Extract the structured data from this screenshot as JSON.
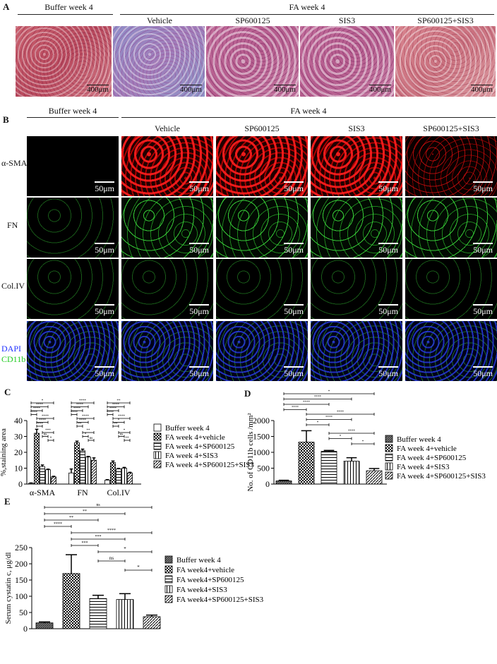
{
  "panelA": {
    "label": "A",
    "buffer_header": "Buffer week 4",
    "fa_header": "FA week 4",
    "columns": [
      "Vehicle",
      "SP600125",
      "SIS3",
      "SP600125+SIS3"
    ],
    "scale_bar": "400μm"
  },
  "panelB": {
    "label": "B",
    "buffer_header": "Buffer week 4",
    "fa_header": "FA week 4",
    "columns": [
      "Vehicle",
      "SP600125",
      "SIS3",
      "SP600125+SIS3"
    ],
    "rows": [
      "α-SMA",
      "FN",
      "Col.IV"
    ],
    "dapi_label": "DAPI",
    "cd11b_label": "CD11b",
    "dapi_color": "#2233ff",
    "cd11b_color": "#22cc22",
    "scale_bar": "50μm"
  },
  "chart_data": [
    {
      "panel": "C",
      "type": "bar",
      "categories": [
        "α-SMA",
        "FN",
        "Col.IV"
      ],
      "ylabel": "%,staining area",
      "ylim": [
        0,
        40
      ],
      "yticks": [
        "0",
        "10",
        "20",
        "30",
        "40"
      ],
      "legend": "right",
      "series": [
        {
          "name": "Buffer week 4",
          "values": [
            0.5,
            7,
            2.5
          ],
          "pattern": "white"
        },
        {
          "name": "FA week 4+vehicle",
          "values": [
            32,
            26,
            13.5
          ],
          "pattern": "checker"
        },
        {
          "name": "FA week 4+SP600125",
          "values": [
            11,
            21,
            9.5
          ],
          "pattern": "hlines"
        },
        {
          "name": "FA week 4+SIS3",
          "values": [
            9,
            17,
            10
          ],
          "pattern": "vlines"
        },
        {
          "name": "FA week 4+SP600125+SIS3",
          "values": [
            4.5,
            15,
            7
          ],
          "pattern": "diag"
        }
      ],
      "errors": [
        [
          0.2,
          2.5,
          0.3
        ],
        [
          2.5,
          1,
          1
        ],
        [
          1,
          1,
          0.4
        ],
        [
          0.4,
          0.4,
          0.5
        ],
        [
          0.4,
          1.5,
          0.4
        ]
      ],
      "significance": [
        [
          [
            0,
            4,
            "*"
          ],
          [
            0,
            3,
            "****"
          ],
          [
            0,
            2,
            "****"
          ],
          [
            0,
            1,
            "****"
          ],
          [
            1,
            4,
            "****"
          ],
          [
            1,
            3,
            "****"
          ],
          [
            1,
            2,
            "****"
          ],
          [
            2,
            4,
            "***"
          ],
          [
            2,
            3,
            "ns"
          ],
          [
            3,
            4,
            "*"
          ]
        ],
        [
          [
            0,
            4,
            "****"
          ],
          [
            0,
            3,
            "****"
          ],
          [
            0,
            2,
            "****"
          ],
          [
            0,
            1,
            "****"
          ],
          [
            1,
            4,
            "****"
          ],
          [
            1,
            3,
            "****"
          ],
          [
            1,
            2,
            "**"
          ],
          [
            2,
            4,
            "**"
          ],
          [
            2,
            3,
            "*"
          ],
          [
            3,
            4,
            "ns"
          ]
        ],
        [
          [
            0,
            4,
            "**"
          ],
          [
            0,
            3,
            "****"
          ],
          [
            0,
            2,
            "****"
          ],
          [
            0,
            1,
            "****"
          ],
          [
            1,
            4,
            "****"
          ],
          [
            1,
            3,
            "*"
          ],
          [
            1,
            2,
            "**"
          ],
          [
            2,
            4,
            "*"
          ],
          [
            2,
            3,
            "ns"
          ],
          [
            3,
            4,
            "**"
          ]
        ]
      ]
    },
    {
      "panel": "D",
      "type": "bar",
      "categories": [
        "Buffer week 4",
        "FA week 4+vehicle",
        "FA week 4+SP600125",
        "FA week 4+SIS3",
        "FA week 4+SP600125+SIS3"
      ],
      "ylabel": "No. of CD11b cells /mm²",
      "ylim": [
        0,
        2000
      ],
      "yticks": [
        "0",
        "500",
        "1000",
        "1500",
        "2000"
      ],
      "legend": "right",
      "values": [
        100,
        1320,
        1030,
        720,
        420
      ],
      "errors": [
        20,
        360,
        30,
        110,
        70
      ],
      "patterns": [
        "dense",
        "checker",
        "hlines",
        "vlines",
        "diag"
      ],
      "significance": [
        [
          0,
          4,
          "*"
        ],
        [
          0,
          3,
          "****"
        ],
        [
          0,
          2,
          "****"
        ],
        [
          0,
          1,
          "****"
        ],
        [
          1,
          4,
          "****"
        ],
        [
          1,
          3,
          "****"
        ],
        [
          1,
          2,
          "*"
        ],
        [
          2,
          4,
          "****"
        ],
        [
          2,
          3,
          "*"
        ],
        [
          3,
          4,
          "*"
        ]
      ]
    },
    {
      "panel": "E",
      "type": "bar",
      "categories": [
        "Buffer week 4",
        "FA week4+vehicle",
        "FA week4+SP600125",
        "FA week4+SIS3",
        "FA week4+SP600125+SIS3"
      ],
      "ylabel": "Serum cystatin c, μg/dl",
      "ylim": [
        0,
        250
      ],
      "yticks": [
        "0",
        "50",
        "100",
        "150",
        "200",
        "250"
      ],
      "legend": "right",
      "values": [
        18,
        170,
        93,
        90,
        37
      ],
      "errors": [
        3,
        58,
        10,
        18,
        5
      ],
      "patterns": [
        "dense",
        "checker",
        "hlines",
        "vlines",
        "diag"
      ],
      "significance": [
        [
          0,
          4,
          "ns"
        ],
        [
          0,
          3,
          "**"
        ],
        [
          0,
          2,
          "**"
        ],
        [
          0,
          1,
          "****"
        ],
        [
          1,
          4,
          "****"
        ],
        [
          1,
          3,
          "***"
        ],
        [
          1,
          2,
          "***"
        ],
        [
          2,
          4,
          "*"
        ],
        [
          2,
          3,
          "ns"
        ],
        [
          3,
          4,
          "*"
        ]
      ]
    }
  ]
}
